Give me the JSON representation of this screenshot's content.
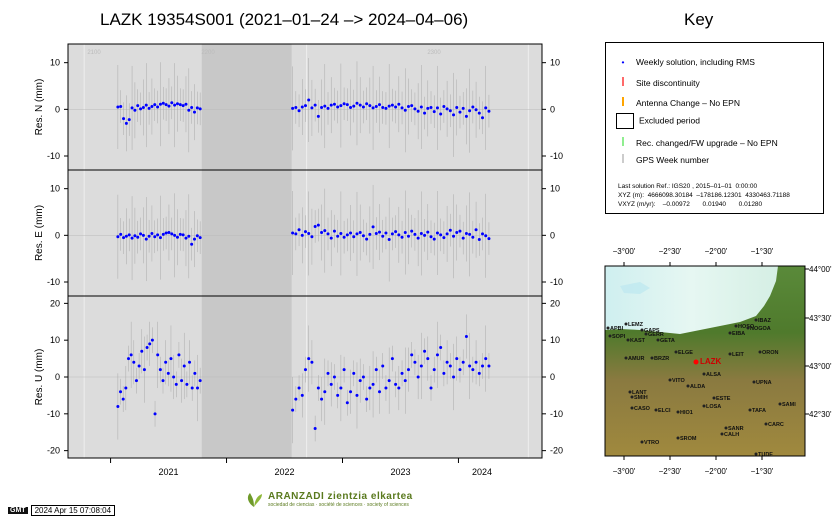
{
  "title": "LAZK 19354S001 (2021–01–24 –> 2024–04–06)",
  "key_title": "Key",
  "legend": [
    {
      "label": "Weekly solution, including RMS",
      "color": "#0000ff",
      "icon": "dot-with-bar"
    },
    {
      "label": "Site discontinuity",
      "color": "#ff6a6a",
      "icon": "tick"
    },
    {
      "label": "Antenna Change – No EPN",
      "color": "#ffa500",
      "icon": "tick"
    },
    {
      "label": "Excluded period",
      "color": "#000000",
      "icon": "box"
    },
    {
      "label": "Rec. changed/FW upgrade – No EPN",
      "color": "#90ee90",
      "icon": "tick"
    },
    {
      "label": "GPS Week number",
      "color": "#cccccc",
      "icon": "tick"
    }
  ],
  "reference": {
    "line1": "Last solution Ref.: IGS20 , 2015–01–01  0:00:00",
    "line2": "XYZ (m):  4666098.30184  –178186.12301  4330463.71188",
    "line3": "VXYZ (m/yr):    –0.00972       0.01940       0.01280"
  },
  "footer": {
    "gmt": "GMT",
    "timestamp": "2024 Apr 15 07:08:04",
    "org_name": "ARANZADI zientzia elkartea",
    "org_tagline": "sociedad de ciencias · société de sciences · society of sciences"
  },
  "chart_data": {
    "type": "scatter",
    "x_ticks": [
      "2021",
      "2022",
      "2023",
      "2024"
    ],
    "gps_weeks": [
      "2100",
      "2200",
      "2300"
    ],
    "x_range": [
      "2020-08-20",
      "2024-09-20"
    ],
    "excluded_period_shading": "light grey",
    "panels": [
      {
        "ylabel": "Res. N (mm)",
        "ylim": [
          -13,
          14
        ],
        "yticks": [
          10,
          0,
          -10
        ],
        "segment1": [
          0.5,
          0.6,
          -2.0,
          -3.0,
          -2.2,
          0.3,
          -0.2,
          0.8,
          0.1,
          0.4,
          0.9,
          0.2,
          0.6,
          1.0,
          0.5,
          1.1,
          1.3,
          1.0,
          0.7,
          1.4,
          0.9,
          1.2,
          1.0,
          0.8,
          1.1,
          -0.2,
          0.4,
          -0.6,
          0.3,
          0.1
        ],
        "segment2": [
          0.2,
          0.4,
          -0.3,
          0.5,
          0.8,
          2.0,
          0.3,
          0.9,
          -1.5,
          0.4,
          0.7,
          0.2,
          0.9,
          1.1,
          0.5,
          0.8,
          1.2,
          1.0,
          0.4,
          0.7,
          1.3,
          0.9,
          0.5,
          1.2,
          0.8,
          0.3,
          0.6,
          1.0,
          0.4,
          0.2,
          0.7,
          0.9,
          0.5,
          1.1,
          0.3,
          -0.2,
          0.6,
          0.8,
          0.1,
          -0.4,
          0.5,
          -0.8,
          0.2,
          0.4,
          -0.5,
          0.3,
          -1.0,
          0.6,
          0.1,
          -0.3,
          -1.2,
          0.4,
          -0.6,
          0.2,
          -1.5,
          -0.3,
          0.5,
          -0.1,
          -0.8,
          -1.8,
          0.3,
          -0.4
        ]
      },
      {
        "ylabel": "Res. E (mm)",
        "ylim": [
          -13,
          14
        ],
        "yticks": [
          10,
          0,
          -10
        ],
        "segment1": [
          -0.3,
          0.2,
          -0.5,
          -0.2,
          0.1,
          -0.6,
          -0.1,
          -0.4,
          0.3,
          0.0,
          -0.8,
          -0.2,
          0.4,
          -0.3,
          0.1,
          -0.5,
          0.2,
          0.5,
          0.6,
          0.3,
          0.0,
          -0.4,
          0.2,
          0.1,
          -0.6,
          -0.2,
          -1.9,
          -0.8,
          -0.1,
          -0.5
        ],
        "segment2": [
          0.5,
          0.3,
          1.2,
          0.0,
          0.8,
          0.4,
          -0.3,
          1.9,
          2.2,
          0.6,
          1.0,
          0.3,
          -0.6,
          0.9,
          -0.2,
          0.4,
          -0.4,
          0.1,
          0.5,
          -0.3,
          0.3,
          0.6,
          -0.1,
          -0.8,
          0.2,
          1.8,
          0.4,
          0.7,
          -0.2,
          0.5,
          -0.9,
          0.3,
          0.8,
          0.1,
          -0.4,
          0.6,
          -0.2,
          0.9,
          0.2,
          -0.6,
          0.4,
          0.0,
          0.7,
          -0.3,
          -0.8,
          0.5,
          0.1,
          -0.5,
          0.3,
          1.1,
          -0.2,
          0.6,
          0.9,
          -0.6,
          0.4,
          0.2,
          -0.4,
          1.2,
          -0.9,
          0.3,
          -0.1,
          -0.7
        ]
      },
      {
        "ylabel": "Res. U (mm)",
        "ylim": [
          -22,
          22
        ],
        "yticks": [
          20,
          10,
          0,
          -10,
          -20
        ],
        "segment1": [
          -8,
          -4,
          -6,
          -3,
          5,
          6,
          4,
          -1,
          3,
          7,
          2,
          8,
          9,
          10,
          -10,
          6,
          2,
          -1,
          4,
          1,
          5,
          0,
          -2,
          6,
          -1,
          3,
          -2,
          4,
          -3,
          1,
          -3,
          -1
        ],
        "segment2": [
          -9,
          -6,
          -3,
          -5,
          2,
          5,
          4,
          -14,
          -3,
          -6,
          -4,
          1,
          -2,
          0,
          -5,
          -3,
          2,
          -7,
          -4,
          1,
          -5,
          -1,
          0,
          -6,
          -3,
          -2,
          2,
          -4,
          3,
          -3,
          -1,
          5,
          -2,
          -3,
          1,
          -1,
          2,
          6,
          4,
          0,
          3,
          7,
          5,
          -3,
          2,
          6,
          8,
          1,
          4,
          3,
          0,
          5,
          2,
          4,
          11,
          3,
          2,
          4,
          1,
          3,
          5,
          3
        ]
      }
    ]
  },
  "map": {
    "lon_ticks": [
      "−3°00'",
      "−2°30'",
      "−2°00'",
      "−1°30'"
    ],
    "lat_ticks": [
      "44°00'",
      "43°30'",
      "43°00'",
      "42°30'"
    ],
    "main_station": "LAZK",
    "stations": [
      "LEMZ",
      "APBI",
      "GAPS",
      "SOPI",
      "KAST",
      "GETA",
      "GERR",
      "IBAZ",
      "HOSO",
      "NOGOA",
      "EIBA",
      "AMUR",
      "BRZR",
      "ELGE",
      "ORON",
      "LEIT",
      "ALSA",
      "VITO",
      "ALDA",
      "UPNA",
      "LANT",
      "SMIH",
      "ESTE",
      "CASO",
      "ELCI",
      "LOSA",
      "SAMI",
      "TAFA",
      "HIO1",
      "SANR",
      "CARC",
      "CALH",
      "SROM",
      "VTRO",
      "TUDE"
    ]
  }
}
